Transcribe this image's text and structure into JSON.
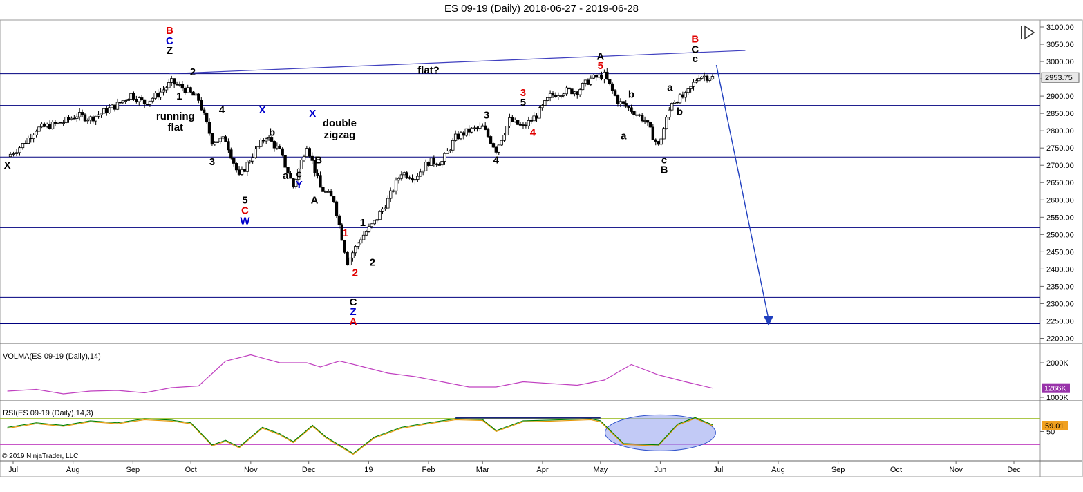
{
  "window": {
    "title": "ES 09-19 (Daily)  2018-06-27 - 2019-06-28"
  },
  "controls": {
    "play_icon": "play-pause-icon"
  },
  "copyright": "© 2019 NinjaTrader, LLC",
  "colors": {
    "bull": "#ffffff",
    "bear": "#000000",
    "level_line": "#00007f",
    "trend_line": "#3f3fbf",
    "arrow": "#1f3fbf",
    "volma": "#c040c0",
    "rsi_green": "#008000",
    "rsi_orange": "#e69500",
    "rsi_upper": "#a0c030",
    "rsi_lower": "#c040c0",
    "red_label": "#e00000",
    "blue_label": "#0000cc",
    "highlight_ellipse": "#9aa6f0"
  },
  "chart_data": [
    {
      "type": "candlestick",
      "title": "ES 09-19 (Daily)  2018-06-27 - 2019-06-28",
      "ylim": [
        2175,
        3110
      ],
      "yticks": [
        "3100.00",
        "3050.00",
        "3000.00",
        "2950.00",
        "2900.00",
        "2850.00",
        "2800.00",
        "2750.00",
        "2700.00",
        "2650.00",
        "2600.00",
        "2550.00",
        "2500.00",
        "2450.00",
        "2400.00",
        "2350.00",
        "2300.00",
        "2250.00",
        "2200.00"
      ],
      "ytick_values": [
        3100,
        3050,
        3000,
        2950,
        2900,
        2850,
        2800,
        2750,
        2700,
        2650,
        2600,
        2550,
        2500,
        2450,
        2400,
        2350,
        2300,
        2250,
        2200
      ],
      "x_months": [
        "Jul",
        "Aug",
        "Sep",
        "Oct",
        "Nov",
        "Dec",
        "19",
        "Feb",
        "Mar",
        "Apr",
        "May",
        "Jun",
        "Jul",
        "Aug",
        "Sep",
        "Oct",
        "Nov",
        "Dec"
      ],
      "last_price": "2953.75",
      "horizontal_levels": [
        2965,
        2873,
        2724,
        2520,
        2318,
        2242
      ],
      "trend_line": {
        "from": [
          "2018-09-20",
          2965
        ],
        "to": [
          "2019-07-15",
          3032
        ]
      },
      "projection_arrow": {
        "from": [
          "2019-06-30",
          2990
        ],
        "to": [
          "2019-07-27",
          2240
        ]
      },
      "closes": [
        [
          "2018-06-28",
          2725
        ],
        [
          "2018-07-06",
          2760
        ],
        [
          "2018-07-13",
          2805
        ],
        [
          "2018-07-20",
          2815
        ],
        [
          "2018-07-27",
          2825
        ],
        [
          "2018-08-03",
          2845
        ],
        [
          "2018-08-10",
          2835
        ],
        [
          "2018-08-17",
          2855
        ],
        [
          "2018-08-24",
          2875
        ],
        [
          "2018-08-31",
          2905
        ],
        [
          "2018-09-07",
          2880
        ],
        [
          "2018-09-14",
          2905
        ],
        [
          "2018-09-21",
          2940
        ],
        [
          "2018-09-28",
          2920
        ],
        [
          "2018-10-05",
          2890
        ],
        [
          "2018-10-12",
          2770
        ],
        [
          "2018-10-19",
          2775
        ],
        [
          "2018-10-26",
          2665
        ],
        [
          "2018-11-02",
          2730
        ],
        [
          "2018-11-09",
          2785
        ],
        [
          "2018-11-16",
          2740
        ],
        [
          "2018-11-23",
          2640
        ],
        [
          "2018-11-30",
          2760
        ],
        [
          "2018-12-07",
          2635
        ],
        [
          "2018-12-14",
          2600
        ],
        [
          "2018-12-21",
          2420
        ],
        [
          "2018-12-28",
          2490
        ],
        [
          "2019-01-04",
          2535
        ],
        [
          "2019-01-11",
          2600
        ],
        [
          "2019-01-18",
          2680
        ],
        [
          "2019-01-25",
          2665
        ],
        [
          "2019-02-01",
          2710
        ],
        [
          "2019-02-08",
          2710
        ],
        [
          "2019-02-15",
          2780
        ],
        [
          "2019-02-22",
          2800
        ],
        [
          "2019-03-01",
          2810
        ],
        [
          "2019-03-08",
          2745
        ],
        [
          "2019-03-15",
          2830
        ],
        [
          "2019-03-22",
          2810
        ],
        [
          "2019-03-29",
          2845
        ],
        [
          "2019-04-05",
          2900
        ],
        [
          "2019-04-12",
          2915
        ],
        [
          "2019-04-19",
          2915
        ],
        [
          "2019-04-26",
          2950
        ],
        [
          "2019-05-03",
          2960
        ],
        [
          "2019-05-10",
          2885
        ],
        [
          "2019-05-17",
          2860
        ],
        [
          "2019-05-24",
          2830
        ],
        [
          "2019-05-31",
          2755
        ],
        [
          "2019-06-07",
          2885
        ],
        [
          "2019-06-14",
          2900
        ],
        [
          "2019-06-21",
          2960
        ],
        [
          "2019-06-28",
          2953.75
        ]
      ],
      "annotations": [
        {
          "text": "X",
          "date": "2018-06-28",
          "price": 2690,
          "color": "black"
        },
        {
          "text": "B",
          "date": "2018-09-20",
          "price": 3080,
          "color": "red"
        },
        {
          "text": "C",
          "date": "2018-09-20",
          "price": 3050,
          "color": "blue"
        },
        {
          "text": "Z",
          "date": "2018-09-20",
          "price": 3022,
          "color": "black"
        },
        {
          "text": "2",
          "date": "2018-10-02",
          "price": 2960,
          "color": "black"
        },
        {
          "text": "1",
          "date": "2018-09-25",
          "price": 2890,
          "color": "black"
        },
        {
          "text": "running",
          "date": "2018-09-23",
          "price": 2832,
          "color": "black"
        },
        {
          "text": "flat",
          "date": "2018-09-23",
          "price": 2800,
          "color": "black"
        },
        {
          "text": "4",
          "date": "2018-10-17",
          "price": 2850,
          "color": "black"
        },
        {
          "text": "3",
          "date": "2018-10-12",
          "price": 2700,
          "color": "black"
        },
        {
          "text": "5",
          "date": "2018-10-29",
          "price": 2590,
          "color": "black"
        },
        {
          "text": "C",
          "date": "2018-10-29",
          "price": 2560,
          "color": "red"
        },
        {
          "text": "W",
          "date": "2018-10-29",
          "price": 2530,
          "color": "blue"
        },
        {
          "text": "X",
          "date": "2018-11-07",
          "price": 2850,
          "color": "blue"
        },
        {
          "text": "b",
          "date": "2018-11-12",
          "price": 2785,
          "color": "black"
        },
        {
          "text": "a",
          "date": "2018-11-19",
          "price": 2660,
          "color": "black"
        },
        {
          "text": "c",
          "date": "2018-11-26",
          "price": 2665,
          "color": "black"
        },
        {
          "text": "Y",
          "date": "2018-11-26",
          "price": 2635,
          "color": "blue"
        },
        {
          "text": "X",
          "date": "2018-12-03",
          "price": 2840,
          "color": "blue"
        },
        {
          "text": "double",
          "date": "2018-12-17",
          "price": 2812,
          "color": "black"
        },
        {
          "text": "zigzag",
          "date": "2018-12-17",
          "price": 2778,
          "color": "black"
        },
        {
          "text": "B",
          "date": "2018-12-06",
          "price": 2705,
          "color": "black"
        },
        {
          "text": "A",
          "date": "2018-12-04",
          "price": 2590,
          "color": "black"
        },
        {
          "text": "1",
          "date": "2018-12-20",
          "price": 2495,
          "color": "red"
        },
        {
          "text": "1",
          "date": "2018-12-29",
          "price": 2525,
          "color": "black"
        },
        {
          "text": "2",
          "date": "2018-12-25",
          "price": 2380,
          "color": "red"
        },
        {
          "text": "2",
          "date": "2019-01-03",
          "price": 2410,
          "color": "black"
        },
        {
          "text": "C",
          "date": "2018-12-24",
          "price": 2295,
          "color": "black"
        },
        {
          "text": "Z",
          "date": "2018-12-24",
          "price": 2267,
          "color": "blue"
        },
        {
          "text": "A",
          "date": "2018-12-24",
          "price": 2239,
          "color": "red"
        },
        {
          "text": "flat?",
          "date": "2019-02-01",
          "price": 2965,
          "color": "black"
        },
        {
          "text": "3",
          "date": "2019-03-03",
          "price": 2835,
          "color": "black"
        },
        {
          "text": "4",
          "date": "2019-03-08",
          "price": 2705,
          "color": "black"
        },
        {
          "text": "3",
          "date": "2019-03-22",
          "price": 2900,
          "color": "red"
        },
        {
          "text": "5",
          "date": "2019-03-22",
          "price": 2872,
          "color": "black"
        },
        {
          "text": "4",
          "date": "2019-03-27",
          "price": 2785,
          "color": "red"
        },
        {
          "text": "A",
          "date": "2019-05-01",
          "price": 3005,
          "color": "black"
        },
        {
          "text": "5",
          "date": "2019-05-01",
          "price": 2978,
          "color": "red"
        },
        {
          "text": "b",
          "date": "2019-05-17",
          "price": 2895,
          "color": "black"
        },
        {
          "text": "a",
          "date": "2019-05-13",
          "price": 2775,
          "color": "black"
        },
        {
          "text": "a",
          "date": "2019-06-06",
          "price": 2915,
          "color": "black"
        },
        {
          "text": "b",
          "date": "2019-06-11",
          "price": 2845,
          "color": "black"
        },
        {
          "text": "c",
          "date": "2019-06-03",
          "price": 2705,
          "color": "black"
        },
        {
          "text": "B",
          "date": "2019-06-03",
          "price": 2677,
          "color": "black"
        },
        {
          "text": "B",
          "date": "2019-06-19",
          "price": 3055,
          "color": "red"
        },
        {
          "text": "C",
          "date": "2019-06-19",
          "price": 3025,
          "color": "black"
        },
        {
          "text": "c",
          "date": "2019-06-19",
          "price": 2998,
          "color": "black"
        }
      ]
    },
    {
      "type": "line",
      "title": "VOLMA(ES 09-19 (Daily),14)",
      "yticks": [
        "2000K",
        "1000K"
      ],
      "last_value": "1266K",
      "ylim": [
        900,
        2500
      ],
      "series": [
        {
          "values": [
            [
              "2018-06-28",
              1180
            ],
            [
              "2018-07-13",
              1230
            ],
            [
              "2018-07-27",
              1100
            ],
            [
              "2018-08-10",
              1180
            ],
            [
              "2018-08-24",
              1200
            ],
            [
              "2018-09-07",
              1130
            ],
            [
              "2018-09-21",
              1280
            ],
            [
              "2018-10-05",
              1330
            ],
            [
              "2018-10-19",
              2050
            ],
            [
              "2018-11-01",
              2230
            ],
            [
              "2018-11-16",
              2000
            ],
            [
              "2018-11-30",
              2000
            ],
            [
              "2018-12-07",
              1880
            ],
            [
              "2018-12-17",
              2050
            ],
            [
              "2018-12-28",
              1900
            ],
            [
              "2019-01-11",
              1700
            ],
            [
              "2019-01-25",
              1600
            ],
            [
              "2019-02-08",
              1450
            ],
            [
              "2019-02-22",
              1300
            ],
            [
              "2019-03-08",
              1300
            ],
            [
              "2019-03-22",
              1450
            ],
            [
              "2019-04-05",
              1400
            ],
            [
              "2019-04-19",
              1350
            ],
            [
              "2019-05-03",
              1500
            ],
            [
              "2019-05-17",
              1950
            ],
            [
              "2019-05-31",
              1650
            ],
            [
              "2019-06-14",
              1450
            ],
            [
              "2019-06-28",
              1266
            ]
          ]
        }
      ]
    },
    {
      "type": "line",
      "title": "RSI(ES 09-19 (Daily),14,3)",
      "yticks": [
        "50"
      ],
      "last_value": "59.01",
      "ylim": [
        5,
        95
      ],
      "levels": [
        70,
        30
      ],
      "series": [
        {
          "values": [
            [
              "2018-06-28",
              55
            ],
            [
              "2018-07-13",
              62
            ],
            [
              "2018-07-27",
              58
            ],
            [
              "2018-08-10",
              65
            ],
            [
              "2018-08-24",
              62
            ],
            [
              "2018-09-07",
              68
            ],
            [
              "2018-09-21",
              66
            ],
            [
              "2018-10-01",
              62
            ],
            [
              "2018-10-12",
              28
            ],
            [
              "2018-10-19",
              35
            ],
            [
              "2018-10-26",
              25
            ],
            [
              "2018-11-07",
              55
            ],
            [
              "2018-11-16",
              45
            ],
            [
              "2018-11-23",
              33
            ],
            [
              "2018-12-03",
              58
            ],
            [
              "2018-12-10",
              40
            ],
            [
              "2018-12-24",
              15
            ],
            [
              "2019-01-04",
              40
            ],
            [
              "2019-01-18",
              55
            ],
            [
              "2019-02-01",
              62
            ],
            [
              "2019-02-15",
              68
            ],
            [
              "2019-03-01",
              67
            ],
            [
              "2019-03-08",
              50
            ],
            [
              "2019-03-22",
              65
            ],
            [
              "2019-04-05",
              66
            ],
            [
              "2019-04-26",
              68
            ],
            [
              "2019-05-01",
              65
            ],
            [
              "2019-05-13",
              30
            ],
            [
              "2019-05-31",
              28
            ],
            [
              "2019-06-10",
              60
            ],
            [
              "2019-06-19",
              70
            ],
            [
              "2019-06-28",
              59.01
            ]
          ]
        }
      ]
    }
  ]
}
